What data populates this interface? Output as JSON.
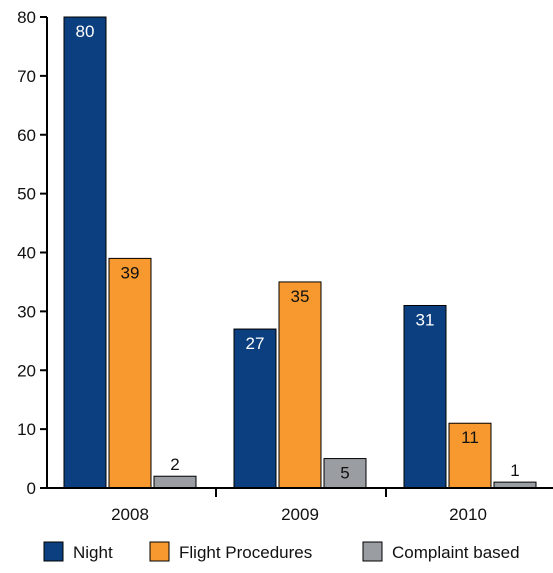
{
  "chart_data": {
    "type": "bar",
    "categories": [
      "2008",
      "2009",
      "2010"
    ],
    "series": [
      {
        "name": "Night",
        "values": [
          80,
          27,
          31
        ],
        "color": "#0B3F7F"
      },
      {
        "name": "Flight Procedures",
        "values": [
          39,
          35,
          11
        ],
        "color": "#F7992E"
      },
      {
        "name": "Complaint based",
        "values": [
          2,
          5,
          1
        ],
        "color": "#9A9DA2"
      }
    ],
    "y_ticks": [
      0,
      10,
      20,
      30,
      40,
      50,
      60,
      70,
      80
    ],
    "ylim": [
      0,
      80
    ],
    "grid": false,
    "legend_position": "bottom",
    "data_labels": true
  }
}
